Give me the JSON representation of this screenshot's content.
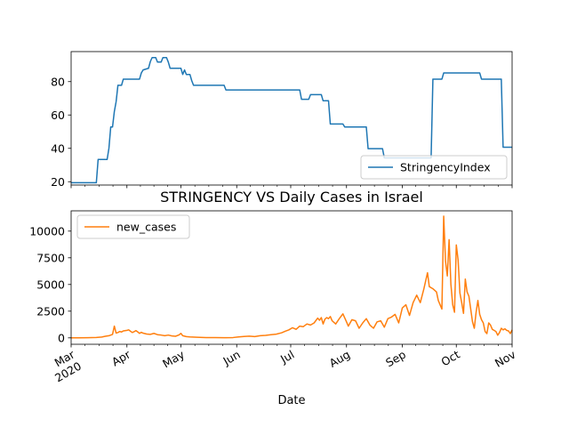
{
  "chart_data": [
    {
      "type": "line",
      "title": "",
      "xlabel": "",
      "ylabel": "",
      "xlim": [
        "2020-03-01",
        "2020-11-01"
      ],
      "ylim": [
        18,
        98
      ],
      "yticks": [
        20,
        40,
        60,
        80
      ],
      "grid": false,
      "legend_position": "bottom-right",
      "series": [
        {
          "name": "StringencyIndex",
          "color": "#1f77b4",
          "points": [
            [
              "2020-03-01",
              19.4
            ],
            [
              "2020-03-15",
              19.4
            ],
            [
              "2020-03-16",
              33.3
            ],
            [
              "2020-03-21",
              33.3
            ],
            [
              "2020-03-22",
              40.0
            ],
            [
              "2020-03-23",
              52.8
            ],
            [
              "2020-03-24",
              52.8
            ],
            [
              "2020-03-25",
              62.0
            ],
            [
              "2020-03-26",
              68.0
            ],
            [
              "2020-03-27",
              77.8
            ],
            [
              "2020-03-28",
              77.8
            ],
            [
              "2020-03-29",
              77.8
            ],
            [
              "2020-03-30",
              81.5
            ],
            [
              "2020-04-08",
              81.5
            ],
            [
              "2020-04-09",
              85.2
            ],
            [
              "2020-04-10",
              87.0
            ],
            [
              "2020-04-13",
              88.0
            ],
            [
              "2020-04-14",
              92.0
            ],
            [
              "2020-04-15",
              94.4
            ],
            [
              "2020-04-17",
              94.4
            ],
            [
              "2020-04-18",
              91.7
            ],
            [
              "2020-04-20",
              91.7
            ],
            [
              "2020-04-21",
              94.4
            ],
            [
              "2020-04-23",
              94.4
            ],
            [
              "2020-04-24",
              91.7
            ],
            [
              "2020-04-25",
              88.0
            ],
            [
              "2020-05-01",
              88.0
            ],
            [
              "2020-05-02",
              84.3
            ],
            [
              "2020-05-03",
              87.0
            ],
            [
              "2020-05-04",
              84.3
            ],
            [
              "2020-05-06",
              84.3
            ],
            [
              "2020-05-07",
              80.6
            ],
            [
              "2020-05-08",
              77.8
            ],
            [
              "2020-05-25",
              77.8
            ],
            [
              "2020-05-26",
              75.0
            ],
            [
              "2020-07-06",
              75.0
            ],
            [
              "2020-07-07",
              69.4
            ],
            [
              "2020-07-11",
              69.4
            ],
            [
              "2020-07-12",
              72.2
            ],
            [
              "2020-07-18",
              72.2
            ],
            [
              "2020-07-19",
              68.5
            ],
            [
              "2020-07-22",
              68.5
            ],
            [
              "2020-07-23",
              54.6
            ],
            [
              "2020-07-30",
              54.6
            ],
            [
              "2020-07-31",
              52.8
            ],
            [
              "2020-08-12",
              52.8
            ],
            [
              "2020-08-13",
              39.8
            ],
            [
              "2020-08-21",
              39.8
            ],
            [
              "2020-08-22",
              34.3
            ],
            [
              "2020-09-17",
              34.3
            ],
            [
              "2020-09-18",
              81.5
            ],
            [
              "2020-09-23",
              81.5
            ],
            [
              "2020-09-24",
              85.2
            ],
            [
              "2020-10-14",
              85.2
            ],
            [
              "2020-10-15",
              81.5
            ],
            [
              "2020-10-26",
              81.5
            ],
            [
              "2020-10-27",
              40.7
            ],
            [
              "2020-11-01",
              40.7
            ]
          ]
        }
      ]
    },
    {
      "type": "line",
      "title": "STRINGENCY VS Daily Cases in Israel",
      "xlabel": "Date",
      "ylabel": "",
      "xlim": [
        "2020-03-01",
        "2020-11-01"
      ],
      "ylim": [
        -600,
        11900
      ],
      "yticks": [
        0,
        2500,
        5000,
        7500,
        10000
      ],
      "ytick_labels": [
        "0",
        "2500",
        "5000",
        "7500",
        "10000"
      ],
      "xticks": [
        "2020-03-01",
        "2020-04-01",
        "2020-05-01",
        "2020-06-01",
        "2020-07-01",
        "2020-08-01",
        "2020-09-01",
        "2020-10-01",
        "2020-11-01"
      ],
      "xtick_labels": [
        "Mar\n2020",
        "Apr",
        "May",
        "Jun",
        "Jul",
        "Aug",
        "Sep",
        "Oct",
        "Nov"
      ],
      "grid": false,
      "legend_position": "top-left",
      "series": [
        {
          "name": "new_cases",
          "color": "#ff7f0e",
          "points": [
            [
              "2020-03-01",
              2
            ],
            [
              "2020-03-05",
              5
            ],
            [
              "2020-03-10",
              15
            ],
            [
              "2020-03-15",
              40
            ],
            [
              "2020-03-18",
              80
            ],
            [
              "2020-03-20",
              150
            ],
            [
              "2020-03-22",
              200
            ],
            [
              "2020-03-24",
              320
            ],
            [
              "2020-03-25",
              1100
            ],
            [
              "2020-03-26",
              450
            ],
            [
              "2020-03-27",
              500
            ],
            [
              "2020-03-28",
              600
            ],
            [
              "2020-03-29",
              550
            ],
            [
              "2020-03-30",
              650
            ],
            [
              "2020-04-01",
              700
            ],
            [
              "2020-04-02",
              750
            ],
            [
              "2020-04-03",
              620
            ],
            [
              "2020-04-04",
              500
            ],
            [
              "2020-04-05",
              580
            ],
            [
              "2020-04-06",
              680
            ],
            [
              "2020-04-07",
              560
            ],
            [
              "2020-04-08",
              420
            ],
            [
              "2020-04-09",
              520
            ],
            [
              "2020-04-10",
              440
            ],
            [
              "2020-04-12",
              360
            ],
            [
              "2020-04-14",
              330
            ],
            [
              "2020-04-16",
              420
            ],
            [
              "2020-04-18",
              300
            ],
            [
              "2020-04-20",
              260
            ],
            [
              "2020-04-22",
              200
            ],
            [
              "2020-04-24",
              260
            ],
            [
              "2020-04-26",
              180
            ],
            [
              "2020-04-28",
              150
            ],
            [
              "2020-04-30",
              280
            ],
            [
              "2020-05-01",
              420
            ],
            [
              "2020-05-02",
              200
            ],
            [
              "2020-05-04",
              120
            ],
            [
              "2020-05-06",
              90
            ],
            [
              "2020-05-10",
              60
            ],
            [
              "2020-05-15",
              30
            ],
            [
              "2020-05-20",
              20
            ],
            [
              "2020-05-25",
              15
            ],
            [
              "2020-05-30",
              30
            ],
            [
              "2020-06-02",
              90
            ],
            [
              "2020-06-05",
              130
            ],
            [
              "2020-06-08",
              160
            ],
            [
              "2020-06-11",
              120
            ],
            [
              "2020-06-14",
              200
            ],
            [
              "2020-06-17",
              230
            ],
            [
              "2020-06-20",
              300
            ],
            [
              "2020-06-23",
              350
            ],
            [
              "2020-06-26",
              480
            ],
            [
              "2020-06-28",
              620
            ],
            [
              "2020-06-30",
              750
            ],
            [
              "2020-07-02",
              950
            ],
            [
              "2020-07-04",
              800
            ],
            [
              "2020-07-06",
              1100
            ],
            [
              "2020-07-08",
              1050
            ],
            [
              "2020-07-10",
              1300
            ],
            [
              "2020-07-12",
              1200
            ],
            [
              "2020-07-14",
              1400
            ],
            [
              "2020-07-16",
              1850
            ],
            [
              "2020-07-17",
              1650
            ],
            [
              "2020-07-18",
              1900
            ],
            [
              "2020-07-19",
              1300
            ],
            [
              "2020-07-20",
              1750
            ],
            [
              "2020-07-21",
              1900
            ],
            [
              "2020-07-22",
              1800
            ],
            [
              "2020-07-23",
              2000
            ],
            [
              "2020-07-24",
              1600
            ],
            [
              "2020-07-26",
              1300
            ],
            [
              "2020-07-28",
              1800
            ],
            [
              "2020-07-30",
              2250
            ],
            [
              "2020-08-01",
              1500
            ],
            [
              "2020-08-02",
              1100
            ],
            [
              "2020-08-04",
              1700
            ],
            [
              "2020-08-06",
              1600
            ],
            [
              "2020-08-08",
              900
            ],
            [
              "2020-08-10",
              1400
            ],
            [
              "2020-08-12",
              1800
            ],
            [
              "2020-08-14",
              1200
            ],
            [
              "2020-08-16",
              900
            ],
            [
              "2020-08-18",
              1500
            ],
            [
              "2020-08-20",
              1600
            ],
            [
              "2020-08-22",
              1000
            ],
            [
              "2020-08-24",
              1800
            ],
            [
              "2020-08-26",
              1950
            ],
            [
              "2020-08-28",
              2200
            ],
            [
              "2020-08-30",
              1400
            ],
            [
              "2020-09-01",
              2800
            ],
            [
              "2020-09-03",
              3100
            ],
            [
              "2020-09-05",
              2100
            ],
            [
              "2020-09-07",
              3300
            ],
            [
              "2020-09-09",
              4000
            ],
            [
              "2020-09-11",
              3300
            ],
            [
              "2020-09-13",
              4600
            ],
            [
              "2020-09-15",
              6100
            ],
            [
              "2020-09-16",
              4800
            ],
            [
              "2020-09-18",
              4600
            ],
            [
              "2020-09-20",
              4300
            ],
            [
              "2020-09-21",
              3500
            ],
            [
              "2020-09-23",
              2700
            ],
            [
              "2020-09-24",
              11400
            ],
            [
              "2020-09-25",
              7200
            ],
            [
              "2020-09-26",
              5800
            ],
            [
              "2020-09-27",
              9200
            ],
            [
              "2020-09-28",
              5000
            ],
            [
              "2020-09-29",
              3100
            ],
            [
              "2020-09-30",
              2400
            ],
            [
              "2020-10-01",
              8700
            ],
            [
              "2020-10-02",
              7300
            ],
            [
              "2020-10-03",
              4200
            ],
            [
              "2020-10-04",
              3300
            ],
            [
              "2020-10-05",
              2300
            ],
            [
              "2020-10-06",
              5500
            ],
            [
              "2020-10-07",
              4300
            ],
            [
              "2020-10-08",
              3900
            ],
            [
              "2020-10-09",
              2700
            ],
            [
              "2020-10-10",
              1500
            ],
            [
              "2020-10-11",
              900
            ],
            [
              "2020-10-12",
              2400
            ],
            [
              "2020-10-13",
              3500
            ],
            [
              "2020-10-14",
              2200
            ],
            [
              "2020-10-15",
              1700
            ],
            [
              "2020-10-16",
              1400
            ],
            [
              "2020-10-17",
              600
            ],
            [
              "2020-10-18",
              400
            ],
            [
              "2020-10-19",
              1400
            ],
            [
              "2020-10-20",
              1200
            ],
            [
              "2020-10-21",
              800
            ],
            [
              "2020-10-22",
              700
            ],
            [
              "2020-10-23",
              600
            ],
            [
              "2020-10-24",
              250
            ],
            [
              "2020-10-25",
              500
            ],
            [
              "2020-10-26",
              900
            ],
            [
              "2020-10-27",
              750
            ],
            [
              "2020-10-28",
              850
            ],
            [
              "2020-10-29",
              700
            ],
            [
              "2020-10-30",
              650
            ],
            [
              "2020-10-31",
              400
            ],
            [
              "2020-11-01",
              750
            ]
          ]
        }
      ]
    }
  ]
}
